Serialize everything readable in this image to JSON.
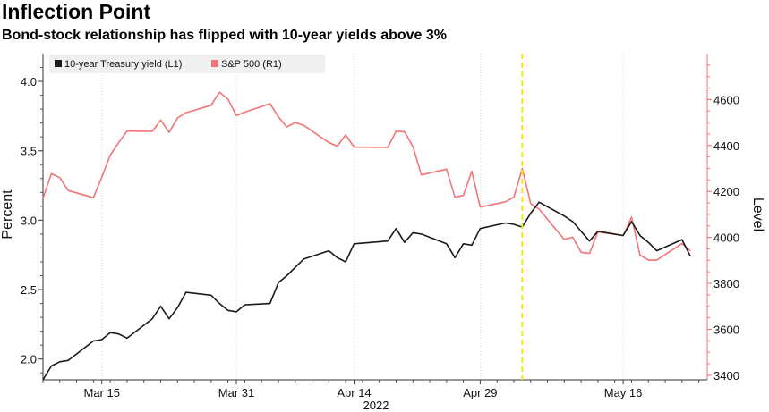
{
  "title": "Inflection Point",
  "subtitle": "Bond-stock relationship has flipped with 10-year yields above 3%",
  "colors": {
    "yield": "#1a1a1a",
    "spx": "#f27474",
    "marker": "#f2e61a",
    "right_axis": "#f27474",
    "grid": "#d9d9d9"
  },
  "chart_data": {
    "type": "line",
    "title": "Inflection Point",
    "subtitle": "Bond-stock relationship has flipped with 10-year yields above 3%",
    "xlabel": "2022",
    "ylabel_left": "Percent",
    "ylabel_right": "Level",
    "x_tick_labels": [
      "Mar 15",
      "Mar 31",
      "Apr 14",
      "Apr 29",
      "May 16"
    ],
    "x_axis_sublabel": "2022",
    "x_ticks": [
      "2022-03-15",
      "2022-03-31",
      "2022-04-14",
      "2022-04-29",
      "2022-05-16"
    ],
    "x": [
      "2022-03-08",
      "2022-03-09",
      "2022-03-10",
      "2022-03-11",
      "2022-03-14",
      "2022-03-15",
      "2022-03-16",
      "2022-03-17",
      "2022-03-18",
      "2022-03-21",
      "2022-03-22",
      "2022-03-23",
      "2022-03-24",
      "2022-03-25",
      "2022-03-28",
      "2022-03-29",
      "2022-03-30",
      "2022-03-31",
      "2022-04-01",
      "2022-04-04",
      "2022-04-05",
      "2022-04-06",
      "2022-04-07",
      "2022-04-08",
      "2022-04-11",
      "2022-04-12",
      "2022-04-13",
      "2022-04-14",
      "2022-04-18",
      "2022-04-19",
      "2022-04-20",
      "2022-04-21",
      "2022-04-22",
      "2022-04-25",
      "2022-04-26",
      "2022-04-27",
      "2022-04-28",
      "2022-04-29",
      "2022-05-02",
      "2022-05-03",
      "2022-05-04",
      "2022-05-05",
      "2022-05-06",
      "2022-05-09",
      "2022-05-10",
      "2022-05-11",
      "2022-05-12",
      "2022-05-13",
      "2022-05-16",
      "2022-05-17",
      "2022-05-18",
      "2022-05-19",
      "2022-05-20",
      "2022-05-23",
      "2022-05-24"
    ],
    "left_axis": {
      "ylim": [
        1.85,
        4.2
      ],
      "ticks": [
        2.0,
        2.5,
        3.0,
        3.5,
        4.0
      ],
      "tick_labels": [
        "2.0",
        "2.5",
        "3.0",
        "3.5",
        "4.0"
      ]
    },
    "right_axis": {
      "ylim": [
        3380,
        4800
      ],
      "ticks": [
        3400,
        3600,
        3800,
        4000,
        4200,
        4400,
        4600
      ],
      "tick_labels": [
        "3400",
        "3600",
        "3800",
        "4000",
        "4200",
        "4400",
        "4600"
      ]
    },
    "vertical_marker": "2022-05-04",
    "legend_position": "top-left",
    "grid": "vertical",
    "series": [
      {
        "name": "10-year Treasury yield (L1)",
        "axis": "left",
        "values": [
          1.85,
          1.95,
          1.98,
          1.99,
          2.13,
          2.14,
          2.19,
          2.18,
          2.15,
          2.29,
          2.38,
          2.29,
          2.37,
          2.48,
          2.46,
          2.4,
          2.35,
          2.34,
          2.39,
          2.4,
          2.55,
          2.6,
          2.66,
          2.72,
          2.78,
          2.73,
          2.7,
          2.83,
          2.85,
          2.94,
          2.84,
          2.91,
          2.9,
          2.83,
          2.73,
          2.83,
          2.82,
          2.94,
          2.98,
          2.97,
          2.95,
          3.05,
          3.13,
          3.03,
          2.99,
          2.92,
          2.85,
          2.92,
          2.89,
          2.99,
          2.89,
          2.84,
          2.78,
          2.86,
          2.74
        ]
      },
      {
        "name": "S&P 500 (R1)",
        "axis": "right",
        "values": [
          4170,
          4277,
          4260,
          4204,
          4173,
          4262,
          4358,
          4412,
          4463,
          4461,
          4511,
          4457,
          4520,
          4543,
          4575,
          4632,
          4602,
          4530,
          4545,
          4582,
          4525,
          4481,
          4500,
          4488,
          4413,
          4397,
          4446,
          4393,
          4392,
          4462,
          4460,
          4395,
          4272,
          4297,
          4175,
          4183,
          4288,
          4132,
          4155,
          4175,
          4300,
          4147,
          4123,
          3991,
          4001,
          3935,
          3930,
          4024,
          4008,
          4088,
          3923,
          3901,
          3901,
          3973,
          3941
        ]
      }
    ]
  }
}
